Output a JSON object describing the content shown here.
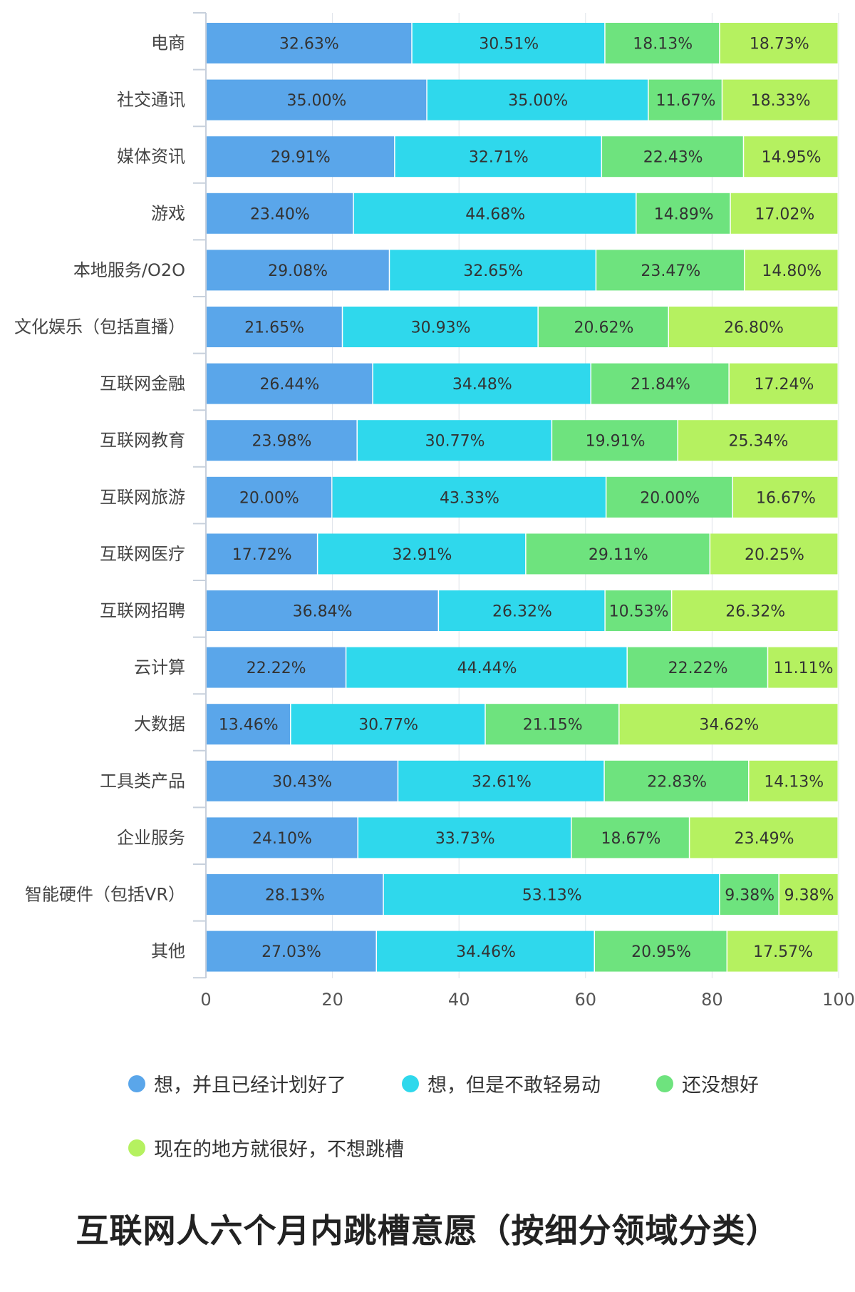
{
  "chart_data": {
    "type": "bar",
    "orientation": "horizontal",
    "stacked": true,
    "title": "互联网人六个月内跳槽意愿（按细分领域分类）",
    "categories": [
      "电商",
      "社交通讯",
      "媒体资讯",
      "游戏",
      "本地服务/O2O",
      "文化娱乐（包括直播）",
      "互联网金融",
      "互联网教育",
      "互联网旅游",
      "互联网医疗",
      "互联网招聘",
      "云计算",
      "大数据",
      "工具类产品",
      "企业服务",
      "智能硬件（包括VR）",
      "其他"
    ],
    "series": [
      {
        "name": "想，并且已经计划好了",
        "color": "#5aa6ea",
        "values": [
          32.63,
          35.0,
          29.91,
          23.4,
          29.08,
          21.65,
          26.44,
          23.98,
          20.0,
          17.72,
          36.84,
          22.22,
          13.46,
          30.43,
          24.1,
          28.13,
          27.03
        ]
      },
      {
        "name": "想，但是不敢轻易动",
        "color": "#2fd8ec",
        "values": [
          30.51,
          35.0,
          32.71,
          44.68,
          32.65,
          30.93,
          34.48,
          30.77,
          43.33,
          32.91,
          26.32,
          44.44,
          30.77,
          32.61,
          33.73,
          53.13,
          34.46
        ]
      },
      {
        "name": "还没想好",
        "color": "#6ee37e",
        "values": [
          18.13,
          11.67,
          22.43,
          14.89,
          23.47,
          20.62,
          21.84,
          19.91,
          20.0,
          29.11,
          10.53,
          22.22,
          21.15,
          22.83,
          18.67,
          9.38,
          20.95
        ]
      },
      {
        "name": "现在的地方就很好，不想跳槽",
        "color": "#b5f160",
        "values": [
          18.73,
          18.33,
          14.95,
          17.02,
          14.8,
          26.8,
          17.24,
          25.34,
          16.67,
          20.25,
          26.32,
          11.11,
          34.62,
          14.13,
          23.49,
          9.38,
          17.57
        ]
      }
    ],
    "xlim": [
      0,
      100
    ],
    "xticks": [
      0,
      20,
      40,
      60,
      80,
      100
    ],
    "value_suffix": "%",
    "grid": true,
    "legend_position": "bottom"
  }
}
